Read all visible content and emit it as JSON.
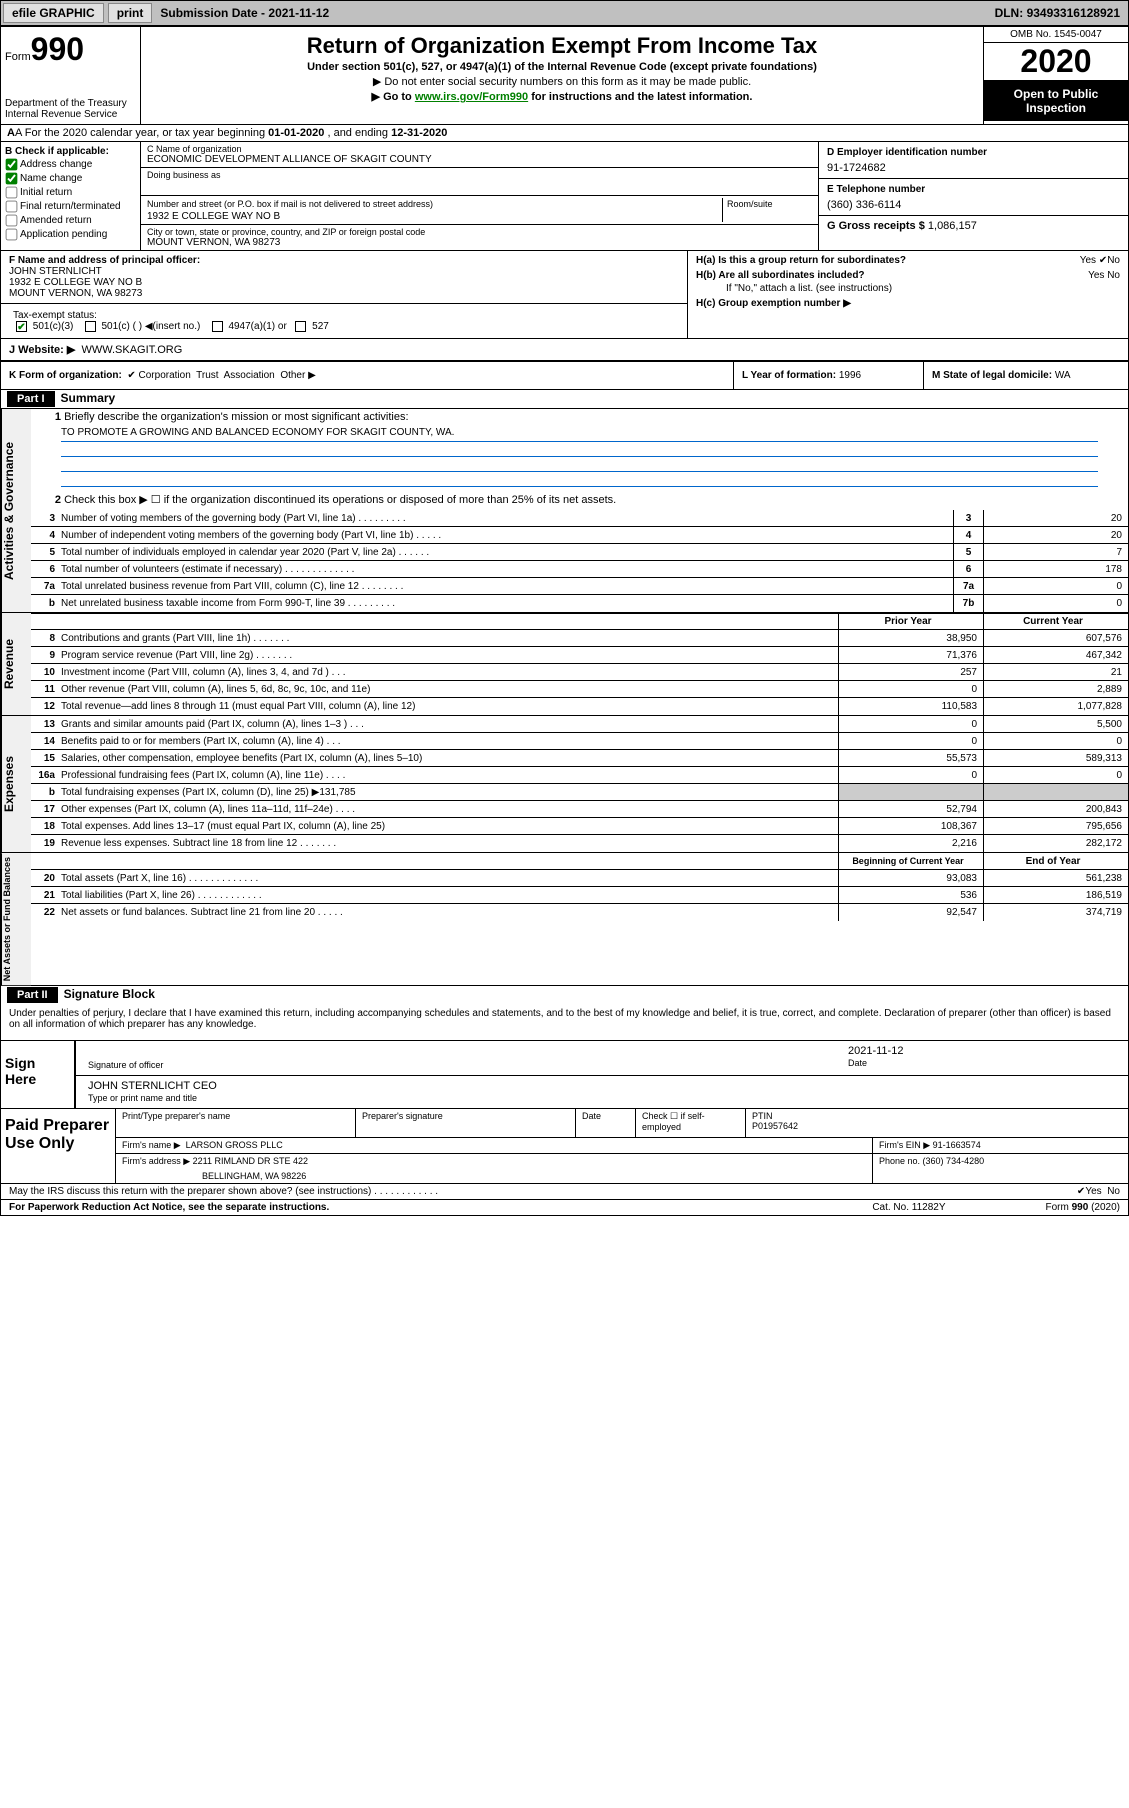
{
  "topbar": {
    "efile": "efile GRAPHIC",
    "print": "print",
    "sub_lbl": "Submission Date - ",
    "sub_date": "2021-11-12",
    "dln_lbl": "DLN: ",
    "dln": "93493316128921"
  },
  "header": {
    "form_word": "Form",
    "form_num": "990",
    "dept": "Department of the Treasury\nInternal Revenue Service",
    "title": "Return of Organization Exempt From Income Tax",
    "sub": "Under section 501(c), 527, or 4947(a)(1) of the Internal Revenue Code (except private foundations)",
    "note1": "▶ Do not enter social security numbers on this form as it may be made public.",
    "note2_pre": "▶ Go to ",
    "note2_link": "www.irs.gov/Form990",
    "note2_post": " for instructions and the latest information.",
    "omb": "OMB No. 1545-0047",
    "year": "2020",
    "inspection": "Open to Public Inspection"
  },
  "row_a": {
    "pre": "A For the 2020 calendar year, or tax year beginning ",
    "begin": "01-01-2020",
    "mid": " , and ending ",
    "end": "12-31-2020"
  },
  "ent_b": {
    "title": "B Check if applicable:",
    "items": [
      "Address change",
      "Name change",
      "Initial return",
      "Final return/terminated",
      "Amended return",
      "Application pending"
    ],
    "checked": [
      true,
      true,
      false,
      false,
      false,
      false
    ]
  },
  "ent_c": {
    "name_lbl": "C Name of organization",
    "name": "ECONOMIC DEVELOPMENT ALLIANCE OF SKAGIT COUNTY",
    "dba_lbl": "Doing business as",
    "dba": "",
    "addr_lbl": "Number and street (or P.O. box if mail is not delivered to street address)",
    "room_lbl": "Room/suite",
    "addr": "1932 E COLLEGE WAY NO B",
    "city_lbl": "City or town, state or province, country, and ZIP or foreign postal code",
    "city": "MOUNT VERNON, WA  98273"
  },
  "ent_d": {
    "ein_lbl": "D Employer identification number",
    "ein": "91-1724682",
    "tel_lbl": "E Telephone number",
    "tel": "(360) 336-6114",
    "gross_lbl": "G Gross receipts $ ",
    "gross": "1,086,157"
  },
  "fhj": {
    "f_lbl": "F Name and address of principal officer:",
    "f_name": "JOHN STERNLICHT",
    "f_addr1": "1932 E COLLEGE WAY NO B",
    "f_addr2": "MOUNT VERNON, WA  98273",
    "ha": "H(a)  Is this a group return for subordinates?",
    "hb": "H(b)  Are all subordinates included?",
    "hb_note": "If \"No,\" attach a list. (see instructions)",
    "hc": "H(c)  Group exemption number ▶",
    "yes": "Yes",
    "no": "No"
  },
  "tax": {
    "lbl": "Tax-exempt status:",
    "opts": [
      "501(c)(3)",
      "501(c) (  ) ◀(insert no.)",
      "4947(a)(1) or",
      "527"
    ]
  },
  "web": {
    "lbl": "J  Website: ▶",
    "val": "WWW.SKAGIT.ORG"
  },
  "klm": {
    "k_lbl": "K Form of organization:",
    "k_opts": [
      "Corporation",
      "Trust",
      "Association",
      "Other ▶"
    ],
    "l_lbl": "L Year of formation: ",
    "l_val": "1996",
    "m_lbl": "M State of legal domicile: ",
    "m_val": "WA"
  },
  "part1": {
    "hdr": "Part I",
    "title": "Summary",
    "q1": "Briefly describe the organization's mission or most significant activities:",
    "mission": "TO PROMOTE A GROWING AND BALANCED ECONOMY FOR SKAGIT COUNTY, WA.",
    "q2": "Check this box ▶ ☐  if the organization discontinued its operations or disposed of more than 25% of its net assets.",
    "lines_gov": [
      {
        "n": "3",
        "d": "Number of voting members of the governing body (Part VI, line 1a)   .    .    .    .    .    .    .    .    .",
        "box": "3",
        "v": "20"
      },
      {
        "n": "4",
        "d": "Number of independent voting members of the governing body (Part VI, line 1b)    .    .    .    .    .",
        "box": "4",
        "v": "20"
      },
      {
        "n": "5",
        "d": "Total number of individuals employed in calendar year 2020 (Part V, line 2a)    .    .    .    .    .    .",
        "box": "5",
        "v": "7"
      },
      {
        "n": "6",
        "d": "Total number of volunteers (estimate if necessary)    .    .    .    .    .    .    .    .    .    .    .    .    .",
        "box": "6",
        "v": "178"
      },
      {
        "n": "7a",
        "d": "Total unrelated business revenue from Part VIII, column (C), line 12    .    .    .    .    .    .    .    .",
        "box": "7a",
        "v": "0"
      },
      {
        "n": "b",
        "d": "Net unrelated business taxable income from Form 990-T, line 39    .    .    .    .    .    .    .    .    .",
        "box": "7b",
        "v": "0"
      }
    ],
    "col_hdr_prior": "Prior Year",
    "col_hdr_curr": "Current Year",
    "lines_rev": [
      {
        "n": "8",
        "d": "Contributions and grants (Part VIII, line 1h)    .    .    .    .    .    .    .",
        "p": "38,950",
        "c": "607,576"
      },
      {
        "n": "9",
        "d": "Program service revenue (Part VIII, line 2g)    .    .    .    .    .    .    .",
        "p": "71,376",
        "c": "467,342"
      },
      {
        "n": "10",
        "d": "Investment income (Part VIII, column (A), lines 3, 4, and 7d )    .    .    .",
        "p": "257",
        "c": "21"
      },
      {
        "n": "11",
        "d": "Other revenue (Part VIII, column (A), lines 5, 6d, 8c, 9c, 10c, and 11e)",
        "p": "0",
        "c": "2,889"
      },
      {
        "n": "12",
        "d": "Total revenue—add lines 8 through 11 (must equal Part VIII, column (A), line 12)",
        "p": "110,583",
        "c": "1,077,828"
      }
    ],
    "lines_exp": [
      {
        "n": "13",
        "d": "Grants and similar amounts paid (Part IX, column (A), lines 1–3 )   .    .    .",
        "p": "0",
        "c": "5,500"
      },
      {
        "n": "14",
        "d": "Benefits paid to or for members (Part IX, column (A), line 4)    .    .    .",
        "p": "0",
        "c": "0"
      },
      {
        "n": "15",
        "d": "Salaries, other compensation, employee benefits (Part IX, column (A), lines 5–10)",
        "p": "55,573",
        "c": "589,313"
      },
      {
        "n": "16a",
        "d": "Professional fundraising fees (Part IX, column (A), line 11e)    .    .    .    .",
        "p": "0",
        "c": "0"
      },
      {
        "n": "b",
        "d": "Total fundraising expenses (Part IX, column (D), line 25) ▶131,785",
        "p": "",
        "c": "",
        "grey": true
      },
      {
        "n": "17",
        "d": "Other expenses (Part IX, column (A), lines 11a–11d, 11f–24e)   .    .    .    .",
        "p": "52,794",
        "c": "200,843"
      },
      {
        "n": "18",
        "d": "Total expenses. Add lines 13–17 (must equal Part IX, column (A), line 25)",
        "p": "108,367",
        "c": "795,656"
      },
      {
        "n": "19",
        "d": "Revenue less expenses. Subtract line 18 from line 12   .    .    .    .    .    .    .",
        "p": "2,216",
        "c": "282,172"
      }
    ],
    "col_hdr_begin": "Beginning of Current Year",
    "col_hdr_end": "End of Year",
    "lines_net": [
      {
        "n": "20",
        "d": "Total assets (Part X, line 16)   .    .    .    .    .    .    .    .    .    .    .    .    .",
        "p": "93,083",
        "c": "561,238"
      },
      {
        "n": "21",
        "d": "Total liabilities (Part X, line 26)    .    .    .    .    .    .    .    .    .    .    .    .",
        "p": "536",
        "c": "186,519"
      },
      {
        "n": "22",
        "d": "Net assets or fund balances. Subtract line 21 from line 20   .    .    .    .    .",
        "p": "92,547",
        "c": "374,719"
      }
    ],
    "sidebars": [
      "Activities & Governance",
      "Revenue",
      "Expenses",
      "Net Assets or Fund Balances"
    ]
  },
  "part2": {
    "hdr": "Part II",
    "title": "Signature Block",
    "decl": "Under penalties of perjury, I declare that I have examined this return, including accompanying schedules and statements, and to the best of my knowledge and belief, it is true, correct, and complete. Declaration of preparer (other than officer) is based on all information of which preparer has any knowledge.",
    "sign_here": "Sign Here",
    "sig_officer_lbl": "Signature of officer",
    "sig_date_lbl": "Date",
    "sig_date": "2021-11-12",
    "sig_name": "JOHN STERNLICHT CEO",
    "sig_name_lbl": "Type or print name and title",
    "paid_prep": "Paid Preparer Use Only",
    "prep_name_lbl": "Print/Type preparer's name",
    "prep_sig_lbl": "Preparer's signature",
    "prep_date_lbl": "Date",
    "prep_check_lbl": "Check ☐ if self-employed",
    "ptin_lbl": "PTIN",
    "ptin": "P01957642",
    "firm_name_lbl": "Firm's name    ▶",
    "firm_name": "LARSON GROSS PLLC",
    "firm_ein_lbl": "Firm's EIN ▶",
    "firm_ein": "91-1663574",
    "firm_addr_lbl": "Firm's address ▶",
    "firm_addr1": "2211 RIMLAND DR STE 422",
    "firm_addr2": "BELLINGHAM, WA  98226",
    "firm_phone_lbl": "Phone no. ",
    "firm_phone": "(360) 734-4280",
    "discuss": "May the IRS discuss this return with the preparer shown above? (see instructions)    .    .    .    .    .    .    .    .    .    .    .    .",
    "yes": "Yes",
    "no": "No"
  },
  "footer": {
    "left": "For Paperwork Reduction Act Notice, see the separate instructions.",
    "mid": "Cat. No. 11282Y",
    "right": "Form 990 (2020)"
  }
}
